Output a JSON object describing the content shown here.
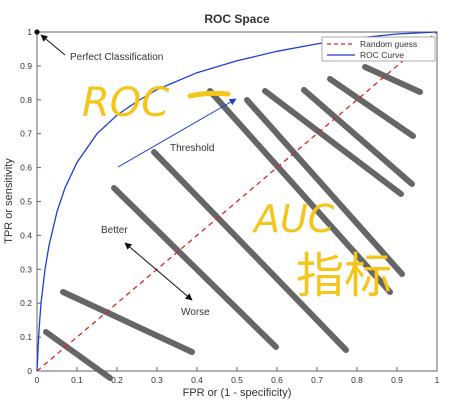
{
  "chart_data": {
    "type": "line",
    "title": "ROC Space",
    "xlabel": "FPR or (1 - specificity)",
    "ylabel": "TPR or sensitivity",
    "xlim": [
      0,
      1
    ],
    "ylim": [
      0,
      1
    ],
    "x_ticks": [
      "0",
      "0.1",
      "0.2",
      "0.3",
      "0.4",
      "0.5",
      "0.6",
      "0.7",
      "0.8",
      "0.9",
      "1"
    ],
    "y_ticks": [
      "0",
      "0.1",
      "0.2",
      "0.3",
      "0.4",
      "0.5",
      "0.6",
      "0.7",
      "0.8",
      "0.9",
      "1"
    ],
    "grid": false,
    "legend_position": "top-right",
    "series": [
      {
        "name": "Random guess",
        "style": "dashed",
        "color": "#d62728",
        "x": [
          0,
          1
        ],
        "y": [
          0,
          1
        ]
      },
      {
        "name": "ROC Curve",
        "style": "solid",
        "color": "#1f3fd0",
        "x": [
          0,
          0.005,
          0.01,
          0.02,
          0.03,
          0.05,
          0.07,
          0.1,
          0.15,
          0.2,
          0.25,
          0.3,
          0.4,
          0.5,
          0.6,
          0.7,
          0.8,
          0.9,
          1.0
        ],
        "y": [
          0,
          0.12,
          0.2,
          0.3,
          0.37,
          0.47,
          0.54,
          0.615,
          0.7,
          0.755,
          0.795,
          0.83,
          0.88,
          0.915,
          0.943,
          0.965,
          0.982,
          0.994,
          1.0
        ]
      }
    ],
    "annotations": [
      {
        "text": "Perfect Classification",
        "point": [
          0,
          1
        ]
      },
      {
        "text": "Threshold",
        "color": "#1f3fd0"
      },
      {
        "text": "Better"
      },
      {
        "text": "Worse"
      }
    ],
    "handwritten": [
      "ROC",
      "AUC",
      "指标"
    ],
    "handwritten_color": "#f5c518"
  }
}
